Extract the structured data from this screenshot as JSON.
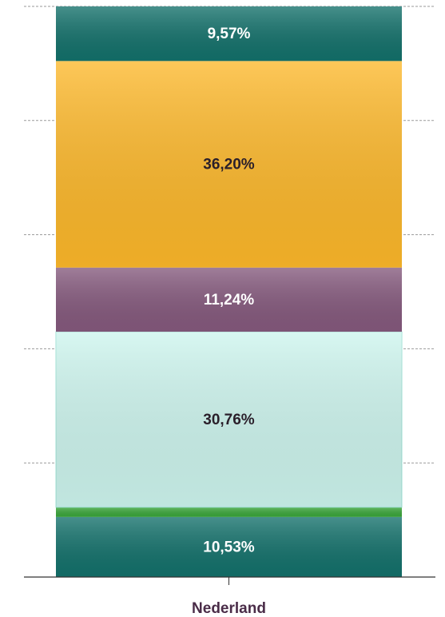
{
  "chart_data": {
    "type": "stacked-bar",
    "categories": [
      "Nederland"
    ],
    "series": [
      {
        "color": "#13716b",
        "values": [
          10.53
        ],
        "value_labels": [
          "10,53%"
        ]
      },
      {
        "color": "#3aa63a",
        "values": [
          1.7
        ],
        "value_labels": [
          null
        ]
      },
      {
        "color": "#cdf5ee",
        "values": [
          30.76
        ],
        "value_labels": [
          "30,76%"
        ]
      },
      {
        "color": "#85597d",
        "values": [
          11.24
        ],
        "value_labels": [
          "11,24%"
        ]
      },
      {
        "color": "#fdb82a",
        "values": [
          36.2
        ],
        "value_labels": [
          "36,20%"
        ]
      },
      {
        "color": "#13716b",
        "values": [
          9.57
        ],
        "value_labels": [
          "9,57%"
        ]
      }
    ],
    "ylim": [
      0,
      100
    ],
    "yticks": [
      0,
      20,
      40,
      60,
      80,
      100
    ],
    "grid": true
  }
}
